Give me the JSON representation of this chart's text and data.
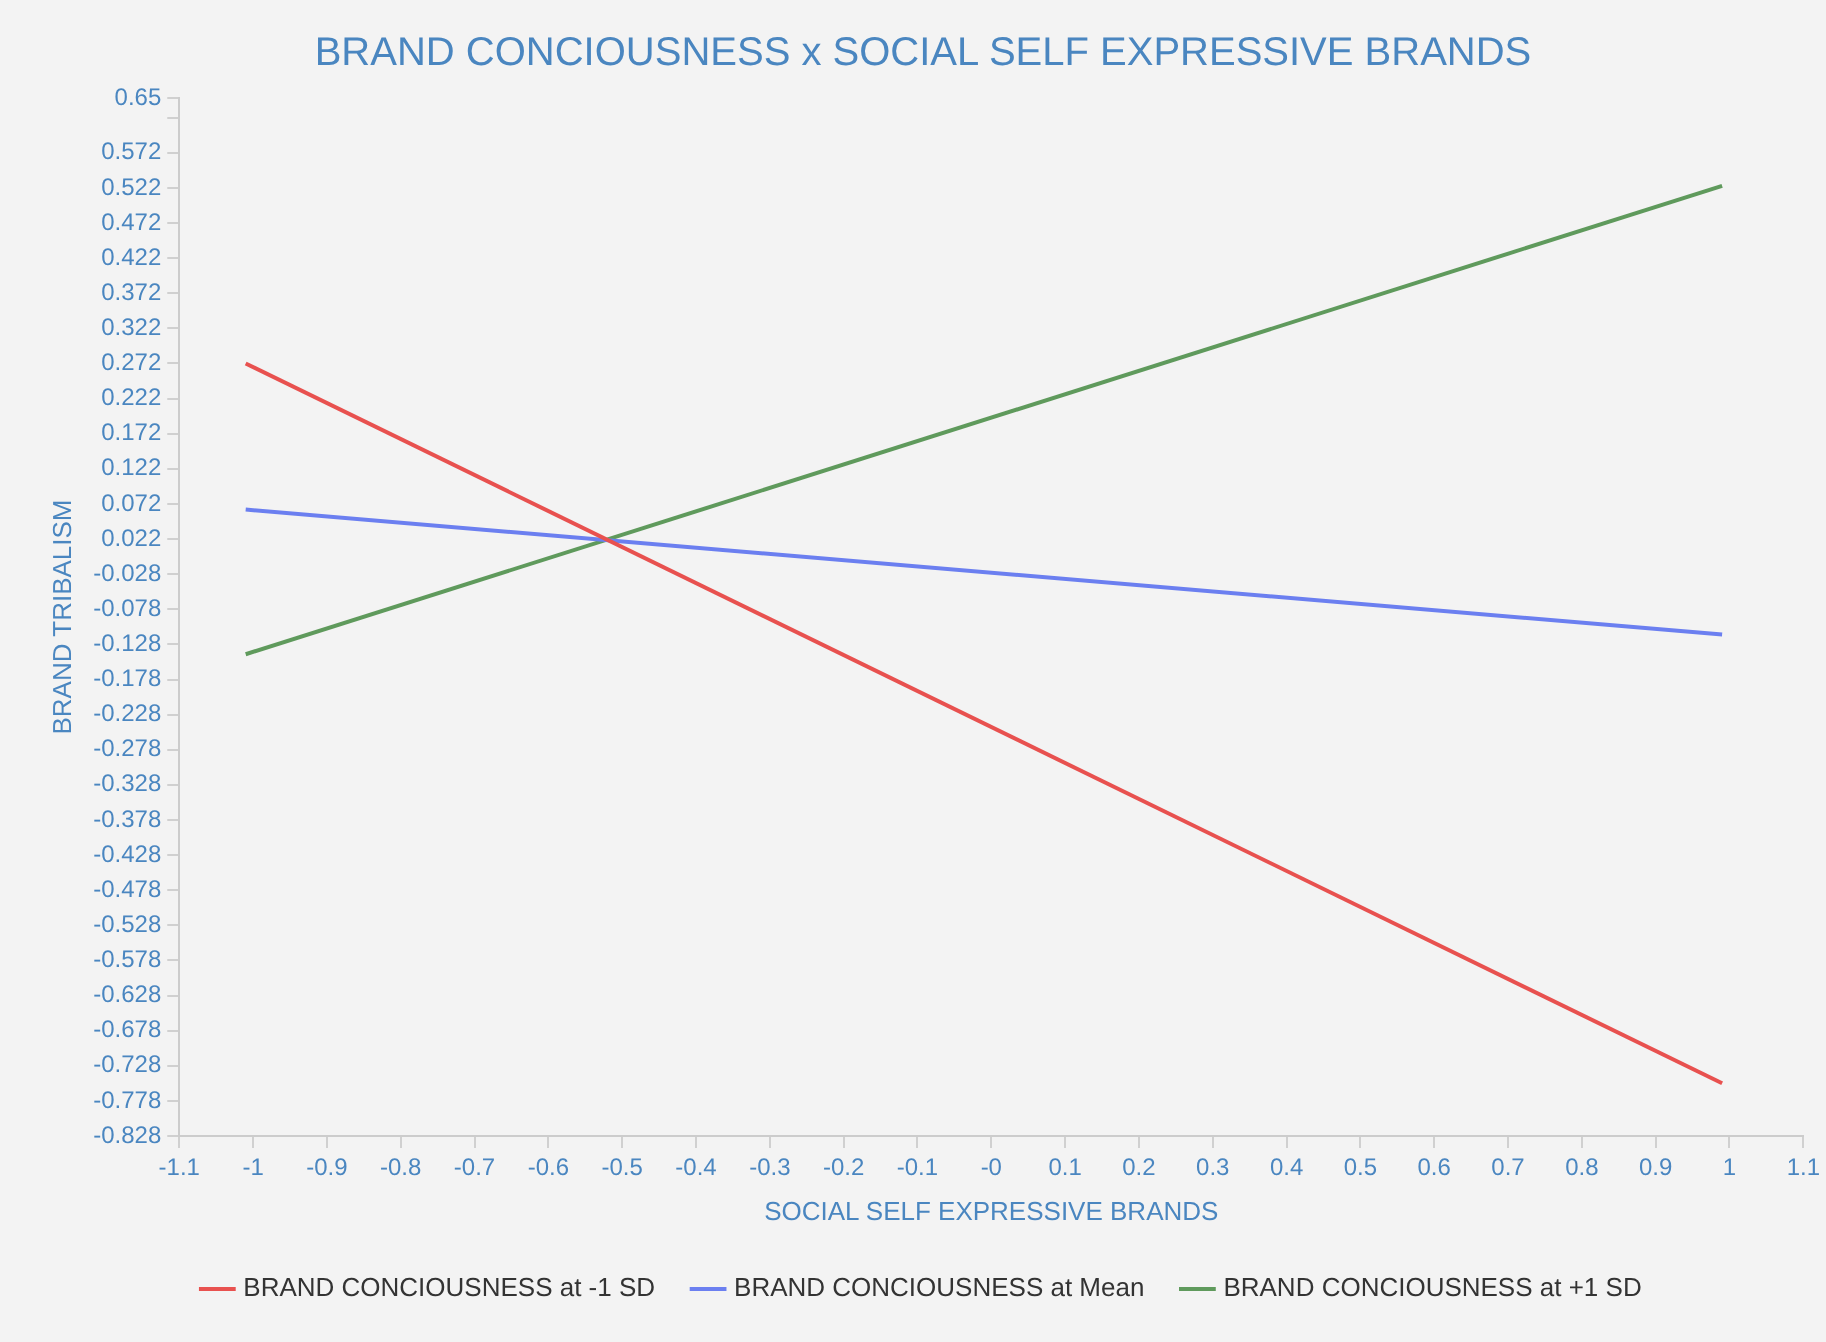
{
  "chart_data": {
    "type": "line",
    "title": "BRAND CONCIOUSNESS x SOCIAL SELF EXPRESSIVE BRANDS",
    "xlabel": "SOCIAL SELF EXPRESSIVE BRANDS",
    "ylabel": "BRAND TRIBALISM",
    "x": [
      -1.01,
      0.99
    ],
    "series": [
      {
        "name": "BRAND CONCIOUSNESS at -1 SD",
        "color": "#e8514f",
        "values": [
          0.272,
          -0.753
        ]
      },
      {
        "name": "BRAND CONCIOUSNESS at Mean",
        "color": "#6b7ff0",
        "values": [
          0.064,
          -0.114
        ]
      },
      {
        "name": "BRAND CONCIOUSNESS at +1 SD",
        "color": "#5f9a5c",
        "values": [
          -0.142,
          0.525
        ]
      }
    ],
    "xlim": [
      -1.1,
      1.1
    ],
    "xticks": [
      -1.1,
      -1,
      -0.9,
      -0.8,
      -0.7,
      -0.6,
      -0.5,
      -0.4,
      -0.3,
      -0.2,
      -0.1,
      {
        "value": 0,
        "label": "-0"
      },
      0.1,
      0.2,
      0.3,
      0.4,
      0.5,
      0.6,
      0.7,
      0.8,
      0.9,
      1,
      1.1
    ],
    "ylim": [
      -0.828,
      0.65
    ],
    "yticks": [
      0.65,
      {
        "value": 0.622,
        "label": null
      },
      0.572,
      0.522,
      0.472,
      0.422,
      0.372,
      0.322,
      0.272,
      0.222,
      0.172,
      0.122,
      0.072,
      0.022,
      -0.028,
      -0.078,
      -0.128,
      -0.178,
      -0.228,
      -0.278,
      -0.328,
      -0.378,
      -0.428,
      -0.478,
      -0.528,
      -0.578,
      -0.628,
      -0.678,
      -0.728,
      -0.778,
      -0.828
    ],
    "grid": false,
    "legend": "bottom",
    "marker": "none",
    "line_style": "solid"
  }
}
